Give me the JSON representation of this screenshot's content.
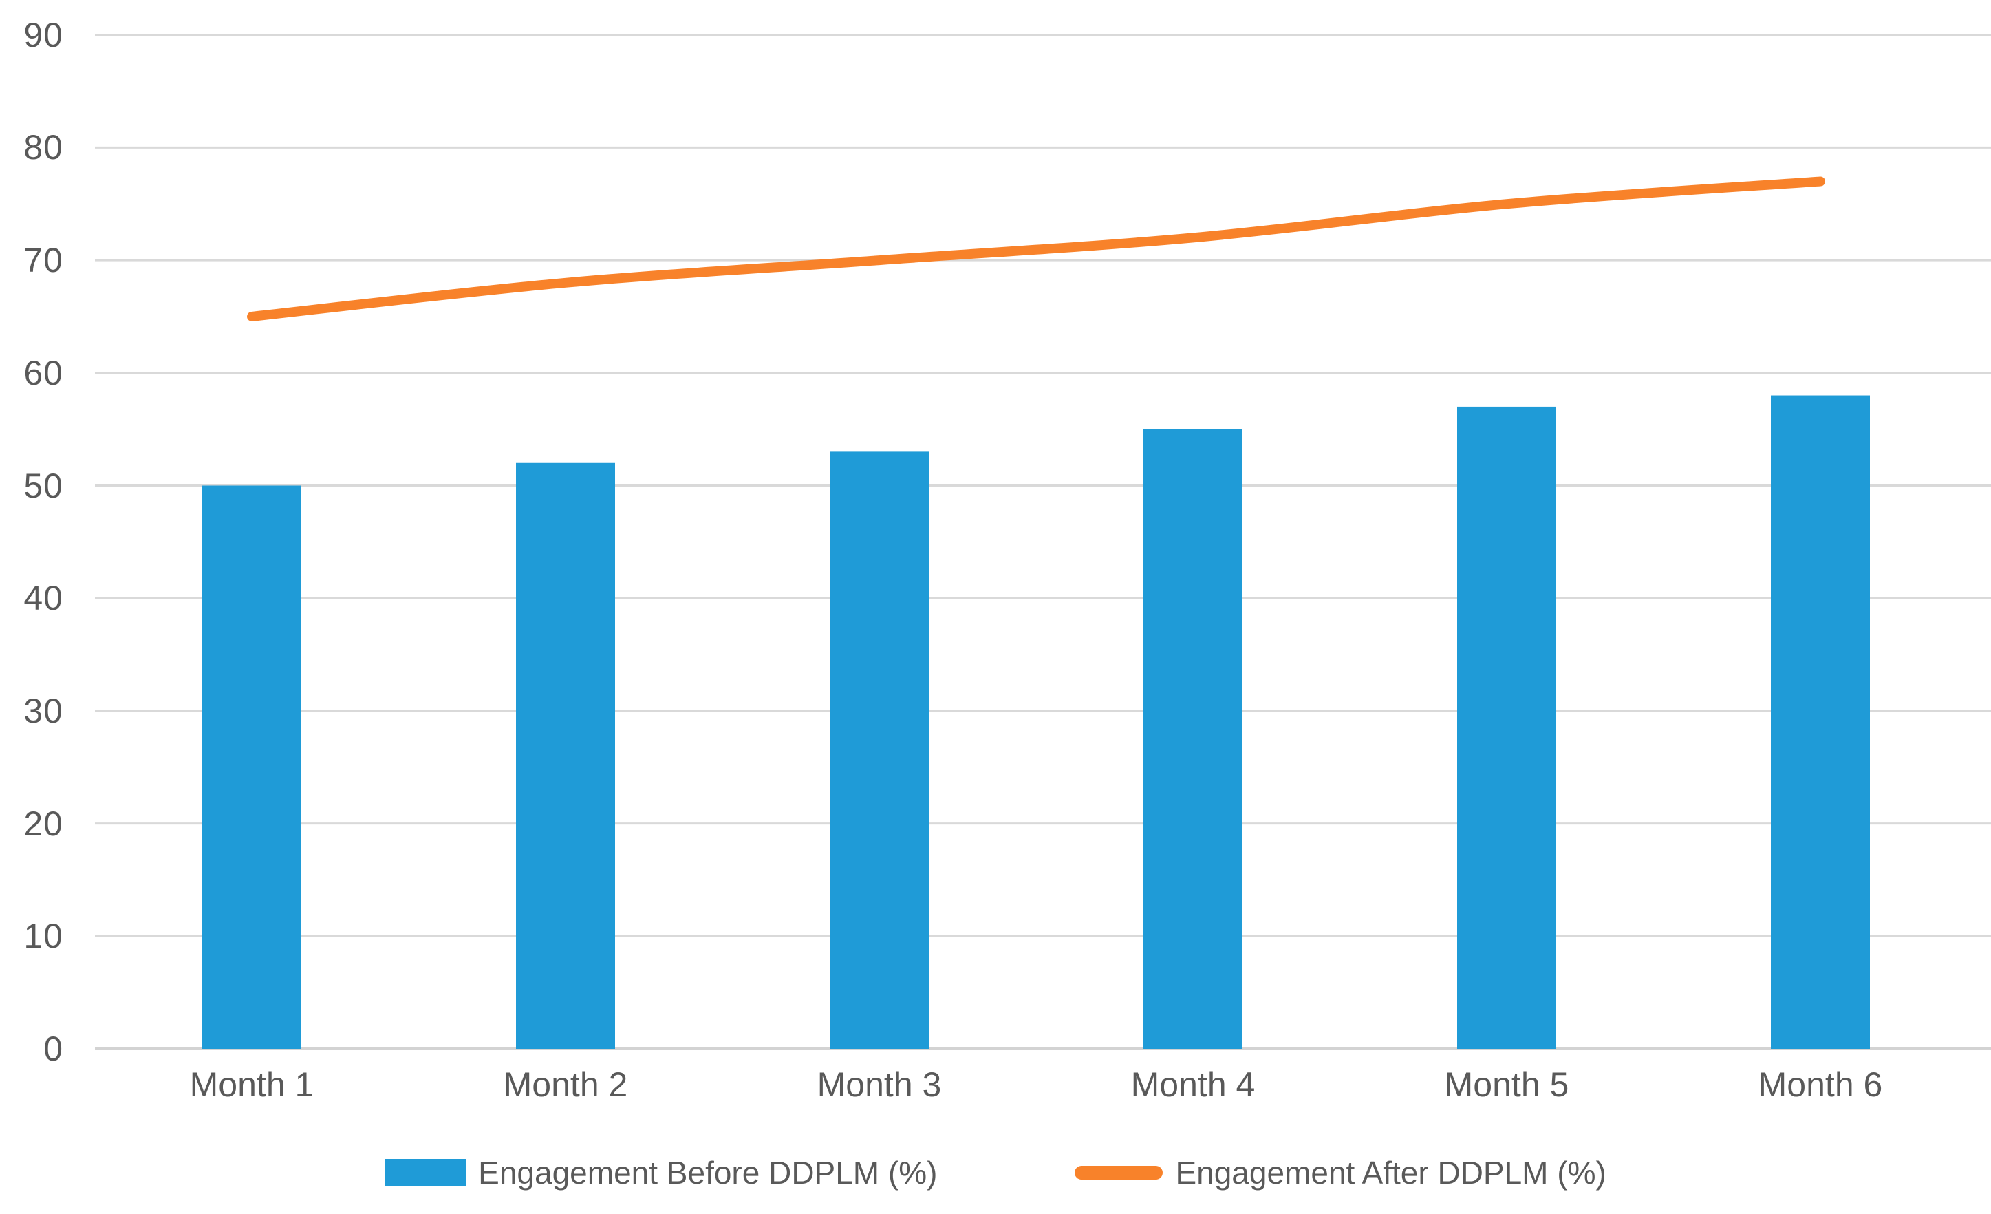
{
  "colors": {
    "bar": "#1F9BD7",
    "line": "#F8822A",
    "text": "#595959",
    "gridline": "#D9D9D9",
    "axis_line": "#D3D3D3",
    "background": "#FFFFFF"
  },
  "chart_data": {
    "type": "combo",
    "title": "",
    "xlabel": "",
    "ylabel": "",
    "categories": [
      "Month 1",
      "Month 2",
      "Month 3",
      "Month 4",
      "Month 5",
      "Month 6"
    ],
    "series": [
      {
        "name": "Engagement Before DDPLM (%)",
        "chart_type": "bar",
        "color": "#1F9BD7",
        "values": [
          50,
          52,
          53,
          55,
          57,
          58
        ]
      },
      {
        "name": "Engagement After DDPLM (%)",
        "chart_type": "line",
        "smooth": true,
        "color": "#F8822A",
        "values": [
          65,
          68,
          70,
          72,
          75,
          77
        ]
      }
    ],
    "ylim": [
      0,
      90
    ],
    "ytick_step": 10,
    "y_ticks": [
      0,
      10,
      20,
      30,
      40,
      50,
      60,
      70,
      80,
      90
    ],
    "grid": true,
    "legend_position": "bottom"
  }
}
